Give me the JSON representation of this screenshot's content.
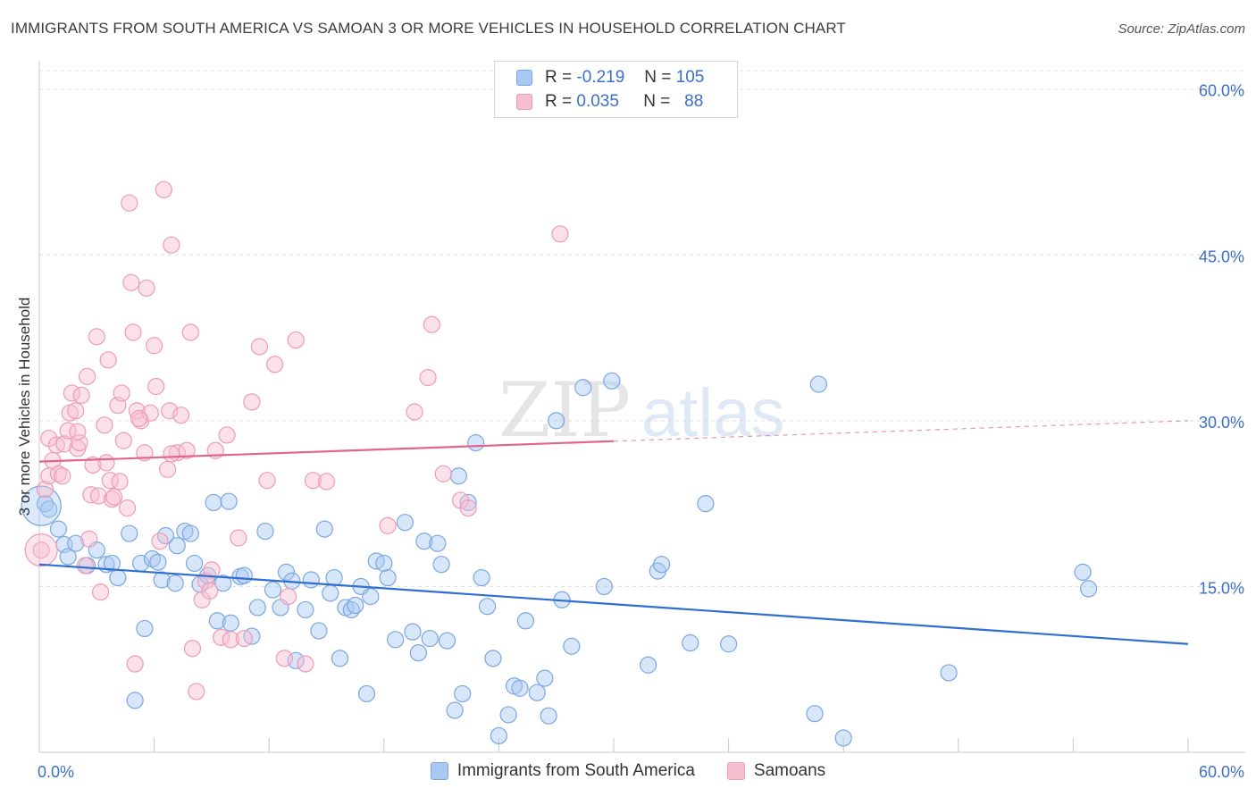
{
  "title": "IMMIGRANTS FROM SOUTH AMERICA VS SAMOAN 3 OR MORE VEHICLES IN HOUSEHOLD CORRELATION CHART",
  "source": "Source: ZipAtlas.com",
  "watermark": {
    "part1": "ZIP",
    "part2": "atlas"
  },
  "legend_top": [
    {
      "r_label": "R =",
      "r_value": "-0.219",
      "n_label": "N =",
      "n_value": "105"
    },
    {
      "r_label": "R =",
      "r_value": "0.035",
      "n_label": "N =",
      "n_value": "88"
    }
  ],
  "legend_bottom": [
    {
      "label": "Immigrants from South America"
    },
    {
      "label": "Samoans"
    }
  ],
  "colors": {
    "blue_fill": "#a9c8f2",
    "blue_stroke": "#7aa7e0",
    "blue_line": "#2f6fcf",
    "pink_fill": "#f6bfd0",
    "pink_stroke": "#ee9bb6",
    "pink_line": "#e0668f",
    "axis_label": "#3b6fc9",
    "grid": "#dddddd"
  },
  "chart_data": {
    "type": "scatter",
    "title": "IMMIGRANTS FROM SOUTH AMERICA VS SAMOAN 3 OR MORE VEHICLES IN HOUSEHOLD CORRELATION CHART",
    "xlabel": "",
    "ylabel": "3 or more Vehicles in Household",
    "xlim": [
      0,
      60
    ],
    "ylim": [
      0,
      62
    ],
    "x_tick_labels": [
      "0.0%",
      "60.0%"
    ],
    "y_ticks": [
      15,
      30,
      45,
      60
    ],
    "y_tick_labels": [
      "15.0%",
      "30.0%",
      "45.0%",
      "60.0%"
    ],
    "grid": true,
    "legend_position": "top-center",
    "series": [
      {
        "name": "Immigrants from South America",
        "color": "#a9c8f2",
        "trend": {
          "x": [
            0,
            60
          ],
          "y": [
            17.0,
            9.8
          ],
          "solid_until": 60
        },
        "points": [
          [
            0.3,
            22.5
          ],
          [
            0.5,
            22.0
          ],
          [
            1.0,
            20.2
          ],
          [
            1.3,
            18.8
          ],
          [
            1.5,
            17.7
          ],
          [
            1.9,
            18.9
          ],
          [
            2.5,
            16.9
          ],
          [
            3.0,
            18.3
          ],
          [
            3.5,
            17.0
          ],
          [
            3.8,
            17.1
          ],
          [
            4.1,
            15.8
          ],
          [
            4.7,
            19.8
          ],
          [
            5.0,
            4.7
          ],
          [
            5.3,
            17.1
          ],
          [
            5.5,
            11.2
          ],
          [
            5.9,
            17.5
          ],
          [
            6.2,
            17.2
          ],
          [
            6.4,
            15.6
          ],
          [
            6.6,
            19.6
          ],
          [
            7.1,
            15.3
          ],
          [
            7.2,
            18.7
          ],
          [
            7.6,
            20.0
          ],
          [
            7.9,
            19.8
          ],
          [
            8.1,
            17.1
          ],
          [
            8.4,
            15.2
          ],
          [
            8.8,
            16.0
          ],
          [
            9.1,
            22.6
          ],
          [
            9.3,
            11.9
          ],
          [
            9.6,
            15.3
          ],
          [
            9.9,
            22.7
          ],
          [
            10.0,
            11.7
          ],
          [
            10.5,
            15.9
          ],
          [
            10.7,
            16.0
          ],
          [
            11.1,
            10.5
          ],
          [
            11.4,
            13.1
          ],
          [
            11.8,
            20.0
          ],
          [
            12.2,
            14.7
          ],
          [
            12.6,
            13.1
          ],
          [
            12.9,
            16.3
          ],
          [
            13.2,
            15.5
          ],
          [
            13.4,
            8.3
          ],
          [
            13.9,
            12.9
          ],
          [
            14.2,
            15.6
          ],
          [
            14.6,
            11.0
          ],
          [
            14.9,
            20.2
          ],
          [
            15.2,
            14.4
          ],
          [
            15.4,
            15.8
          ],
          [
            15.7,
            8.5
          ],
          [
            16.0,
            13.1
          ],
          [
            16.3,
            12.9
          ],
          [
            16.5,
            13.3
          ],
          [
            16.8,
            15.0
          ],
          [
            17.1,
            5.3
          ],
          [
            17.3,
            14.1
          ],
          [
            17.6,
            17.3
          ],
          [
            18.0,
            17.1
          ],
          [
            18.2,
            15.8
          ],
          [
            18.6,
            10.2
          ],
          [
            19.1,
            20.8
          ],
          [
            19.5,
            10.9
          ],
          [
            19.8,
            9.0
          ],
          [
            20.1,
            19.1
          ],
          [
            20.4,
            10.3
          ],
          [
            20.8,
            18.9
          ],
          [
            21.0,
            17.0
          ],
          [
            21.3,
            10.1
          ],
          [
            21.7,
            3.8
          ],
          [
            21.9,
            25.0
          ],
          [
            22.1,
            5.3
          ],
          [
            22.4,
            22.6
          ],
          [
            22.8,
            28.0
          ],
          [
            23.1,
            15.8
          ],
          [
            23.4,
            13.2
          ],
          [
            23.7,
            8.5
          ],
          [
            24.0,
            1.5
          ],
          [
            24.5,
            3.4
          ],
          [
            24.8,
            6.0
          ],
          [
            25.1,
            5.8
          ],
          [
            25.4,
            11.9
          ],
          [
            26.0,
            5.4
          ],
          [
            26.4,
            6.7
          ],
          [
            26.6,
            3.3
          ],
          [
            27.0,
            30.0
          ],
          [
            27.3,
            13.8
          ],
          [
            27.8,
            9.6
          ],
          [
            28.4,
            33.0
          ],
          [
            29.5,
            15.0
          ],
          [
            29.9,
            33.6
          ],
          [
            31.8,
            7.9
          ],
          [
            32.3,
            16.4
          ],
          [
            32.5,
            17.0
          ],
          [
            34.0,
            9.9
          ],
          [
            34.8,
            22.5
          ],
          [
            36.0,
            9.8
          ],
          [
            40.5,
            3.5
          ],
          [
            40.7,
            33.3
          ],
          [
            42.0,
            1.3
          ],
          [
            47.5,
            7.2
          ],
          [
            54.5,
            16.3
          ],
          [
            54.8,
            14.8
          ]
        ]
      },
      {
        "name": "Samoans",
        "color": "#f6bfd0",
        "trend": {
          "x": [
            0,
            60
          ],
          "y": [
            26.3,
            30.0
          ],
          "solid_until": 30
        },
        "points": [
          [
            0.1,
            18.3
          ],
          [
            0.3,
            23.8
          ],
          [
            0.5,
            25.0
          ],
          [
            0.5,
            28.4
          ],
          [
            0.7,
            26.4
          ],
          [
            0.9,
            27.8
          ],
          [
            1.0,
            25.2
          ],
          [
            1.2,
            25.0
          ],
          [
            1.3,
            27.9
          ],
          [
            1.5,
            29.1
          ],
          [
            1.6,
            30.7
          ],
          [
            1.7,
            32.5
          ],
          [
            1.9,
            30.9
          ],
          [
            2.0,
            27.5
          ],
          [
            2.1,
            28.0
          ],
          [
            2.2,
            32.3
          ],
          [
            2.4,
            16.9
          ],
          [
            2.5,
            34.0
          ],
          [
            2.6,
            19.3
          ],
          [
            2.7,
            23.3
          ],
          [
            2.8,
            26.0
          ],
          [
            3.0,
            37.6
          ],
          [
            3.1,
            23.2
          ],
          [
            3.2,
            14.5
          ],
          [
            3.4,
            29.6
          ],
          [
            3.5,
            26.2
          ],
          [
            3.7,
            24.6
          ],
          [
            3.8,
            22.9
          ],
          [
            3.9,
            23.1
          ],
          [
            4.1,
            31.4
          ],
          [
            4.2,
            24.5
          ],
          [
            4.3,
            32.5
          ],
          [
            4.4,
            28.2
          ],
          [
            4.6,
            22.1
          ],
          [
            4.7,
            49.7
          ],
          [
            4.8,
            42.5
          ],
          [
            4.9,
            38.0
          ],
          [
            5.0,
            8.0
          ],
          [
            5.1,
            30.9
          ],
          [
            5.3,
            30.0
          ],
          [
            5.5,
            27.1
          ],
          [
            5.6,
            42.0
          ],
          [
            5.8,
            30.7
          ],
          [
            6.0,
            36.8
          ],
          [
            6.1,
            33.1
          ],
          [
            6.3,
            19.1
          ],
          [
            6.5,
            50.9
          ],
          [
            6.7,
            25.6
          ],
          [
            6.8,
            30.9
          ],
          [
            6.9,
            45.9
          ],
          [
            7.2,
            27.1
          ],
          [
            7.4,
            30.5
          ],
          [
            7.7,
            27.3
          ],
          [
            7.9,
            38.0
          ],
          [
            8.0,
            9.4
          ],
          [
            8.2,
            5.5
          ],
          [
            8.5,
            13.8
          ],
          [
            8.7,
            15.5
          ],
          [
            8.9,
            14.6
          ],
          [
            9.2,
            27.3
          ],
          [
            9.5,
            10.4
          ],
          [
            9.8,
            28.7
          ],
          [
            10.0,
            10.2
          ],
          [
            10.4,
            19.4
          ],
          [
            10.7,
            10.3
          ],
          [
            11.1,
            31.7
          ],
          [
            11.5,
            36.7
          ],
          [
            11.9,
            24.6
          ],
          [
            12.3,
            35.1
          ],
          [
            12.8,
            8.5
          ],
          [
            13.4,
            37.3
          ],
          [
            13.9,
            8.0
          ],
          [
            14.3,
            24.6
          ],
          [
            15.0,
            24.5
          ],
          [
            18.2,
            20.5
          ],
          [
            19.6,
            30.8
          ],
          [
            20.3,
            33.9
          ],
          [
            20.5,
            38.7
          ],
          [
            21.1,
            25.2
          ],
          [
            22.0,
            22.8
          ],
          [
            22.4,
            22.1
          ],
          [
            27.2,
            46.9
          ],
          [
            5.2,
            30.2
          ],
          [
            3.6,
            35.5
          ],
          [
            6.9,
            27.0
          ],
          [
            9.0,
            16.5
          ],
          [
            2.0,
            29.0
          ],
          [
            13.0,
            14.1
          ]
        ]
      }
    ]
  }
}
